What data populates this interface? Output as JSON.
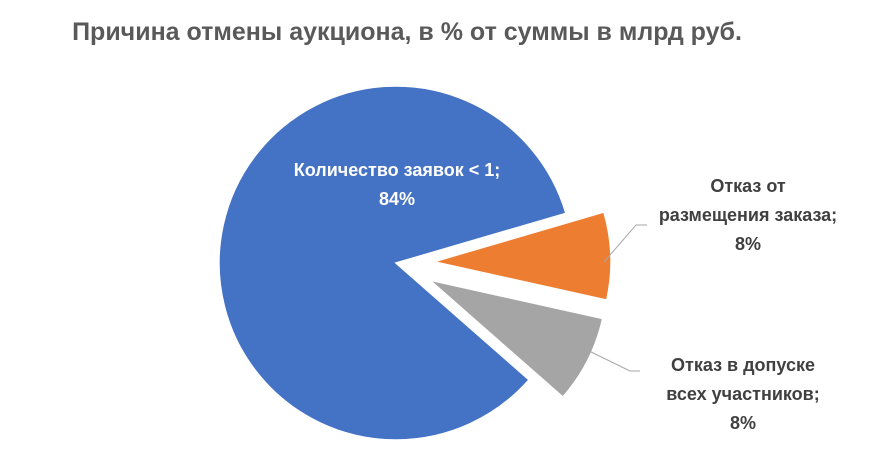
{
  "chart_data": {
    "type": "pie",
    "title": "Причина отмены аукциона, в % от суммы в млрд руб.",
    "slices": [
      {
        "label_lines": [
          "Количество заявок < 1;",
          "84%"
        ],
        "value": 84,
        "color": "#4472C4",
        "label_color": "#FFFFFF"
      },
      {
        "label_lines": [
          "Отказ от",
          "размещения заказа;",
          "8%"
        ],
        "value": 8,
        "color": "#ED7D31",
        "label_color": "#404040"
      },
      {
        "label_lines": [
          "Отказ в допуске",
          "всех участников;",
          "8%"
        ],
        "value": 8,
        "color": "#A5A5A5",
        "label_color": "#404040"
      }
    ],
    "legend": "none"
  }
}
